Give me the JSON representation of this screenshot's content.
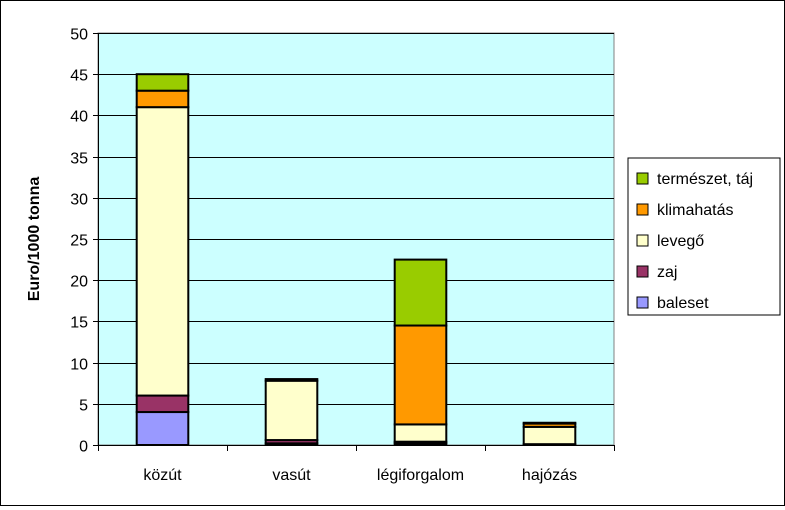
{
  "chart_data": {
    "type": "bar",
    "stacked": true,
    "categories": [
      "közút",
      "vasút",
      "légiforgalom",
      "hajózás"
    ],
    "series": [
      {
        "name": "baleset",
        "values": [
          4,
          0.2,
          0.2,
          0
        ],
        "color": "#9999FF"
      },
      {
        "name": "zaj",
        "values": [
          2,
          0.4,
          0.2,
          0.1
        ],
        "color": "#993366"
      },
      {
        "name": "levegő",
        "values": [
          35,
          7.2,
          2.1,
          2.1
        ],
        "color": "#FFFFCC"
      },
      {
        "name": "klimahatás",
        "values": [
          2,
          0.2,
          12,
          0.4
        ],
        "color": "#FF9900"
      },
      {
        "name": "természet, táj",
        "values": [
          2,
          0,
          8,
          0.1
        ],
        "color": "#99CC00"
      }
    ],
    "ylabel": "Euro/1000 tonna",
    "xlabel": "",
    "title": "",
    "ylim": [
      0,
      50
    ],
    "ytick_step": 5,
    "grid": true,
    "plot_background": "#CCFFFF",
    "legend_position": "right"
  }
}
